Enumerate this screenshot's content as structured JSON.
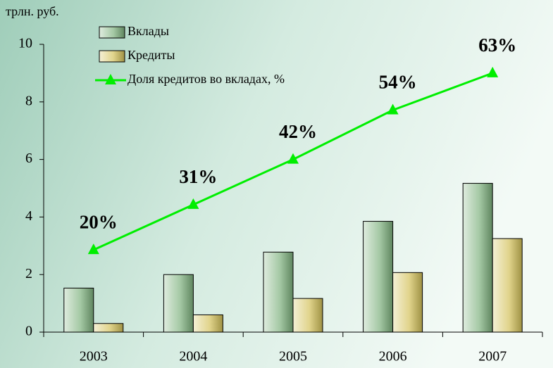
{
  "chart_data": {
    "type": "bar_line",
    "y_label": "трлн. руб.",
    "categories": [
      "2003",
      "2004",
      "2005",
      "2006",
      "2007"
    ],
    "ylim": [
      0,
      10
    ],
    "yticks": [
      0,
      2,
      4,
      6,
      8,
      10
    ],
    "y2lim": [
      0,
      70
    ],
    "series": [
      {
        "name": "Вклады",
        "type": "bar",
        "color": "#7fb27f",
        "values": [
          1.53,
          2.0,
          2.78,
          3.85,
          5.17
        ]
      },
      {
        "name": "Кредиты",
        "type": "bar",
        "color": "#d4c25a",
        "values": [
          0.3,
          0.6,
          1.17,
          2.07,
          3.25
        ]
      },
      {
        "name": "Доля кредитов во вкладах, %",
        "type": "line",
        "axis": "y2",
        "color": "#00ee00",
        "values": [
          20,
          31,
          42,
          54,
          63
        ],
        "value_labels": [
          "20%",
          "31%",
          "42%",
          "54%",
          "63%"
        ]
      }
    ]
  }
}
